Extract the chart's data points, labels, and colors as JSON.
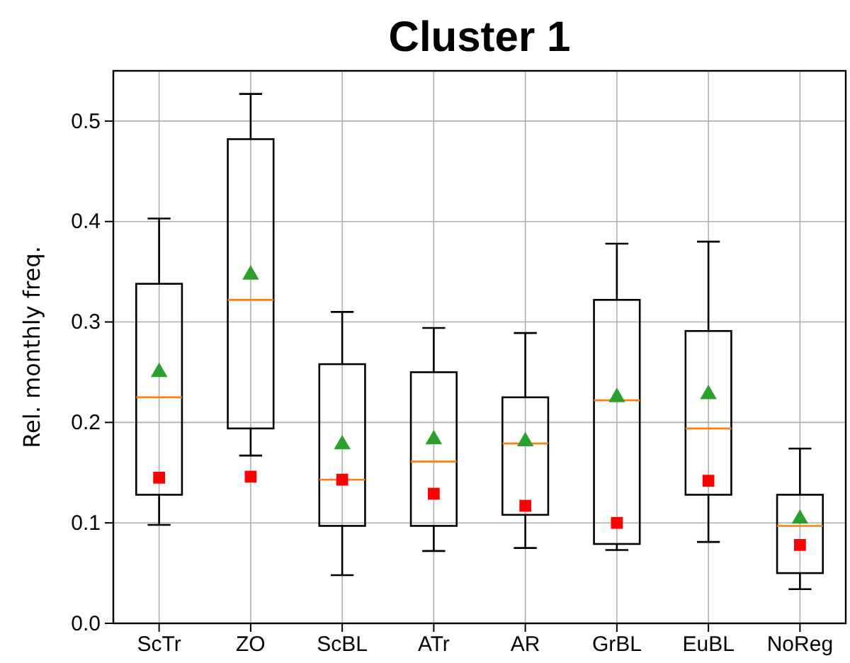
{
  "chart_data": {
    "type": "box",
    "title": "Cluster 1",
    "ylabel": "Rel. monthly freq.",
    "categories": [
      "ScTr",
      "ZO",
      "ScBL",
      "ATr",
      "AR",
      "GrBL",
      "EuBL",
      "NoReg"
    ],
    "boxes": [
      {
        "low": 0.098,
        "q1": 0.128,
        "median": 0.225,
        "q3": 0.338,
        "high": 0.403,
        "mean": 0.25
      },
      {
        "low": 0.167,
        "q1": 0.194,
        "median": 0.322,
        "q3": 0.482,
        "high": 0.527,
        "mean": 0.347
      },
      {
        "low": 0.048,
        "q1": 0.097,
        "median": 0.143,
        "q3": 0.258,
        "high": 0.31,
        "mean": 0.178
      },
      {
        "low": 0.072,
        "q1": 0.097,
        "median": 0.161,
        "q3": 0.25,
        "high": 0.294,
        "mean": 0.183
      },
      {
        "low": 0.075,
        "q1": 0.108,
        "median": 0.179,
        "q3": 0.225,
        "high": 0.289,
        "mean": 0.181
      },
      {
        "low": 0.073,
        "q1": 0.079,
        "median": 0.222,
        "q3": 0.322,
        "high": 0.378,
        "mean": 0.225
      },
      {
        "low": 0.081,
        "q1": 0.128,
        "median": 0.194,
        "q3": 0.291,
        "high": 0.38,
        "mean": 0.228
      },
      {
        "low": 0.034,
        "q1": 0.05,
        "median": 0.097,
        "q3": 0.128,
        "high": 0.174,
        "mean": 0.104
      }
    ],
    "series": [
      {
        "type": "scatter",
        "color": "#ff0000",
        "marker": "square",
        "x": [
          "ScTr",
          "ZO",
          "ScBL",
          "ATr",
          "AR",
          "GrBL",
          "EuBL",
          "NoReg"
        ],
        "values": [
          0.145,
          0.146,
          0.143,
          0.129,
          0.117,
          0.1,
          0.142,
          0.078
        ]
      }
    ],
    "ylim": [
      0,
      0.55
    ],
    "yticks": [
      {
        "value": 0,
        "label": "0.0"
      },
      0.1,
      0.2,
      0.3,
      0.4,
      0.5
    ],
    "grid": true
  }
}
